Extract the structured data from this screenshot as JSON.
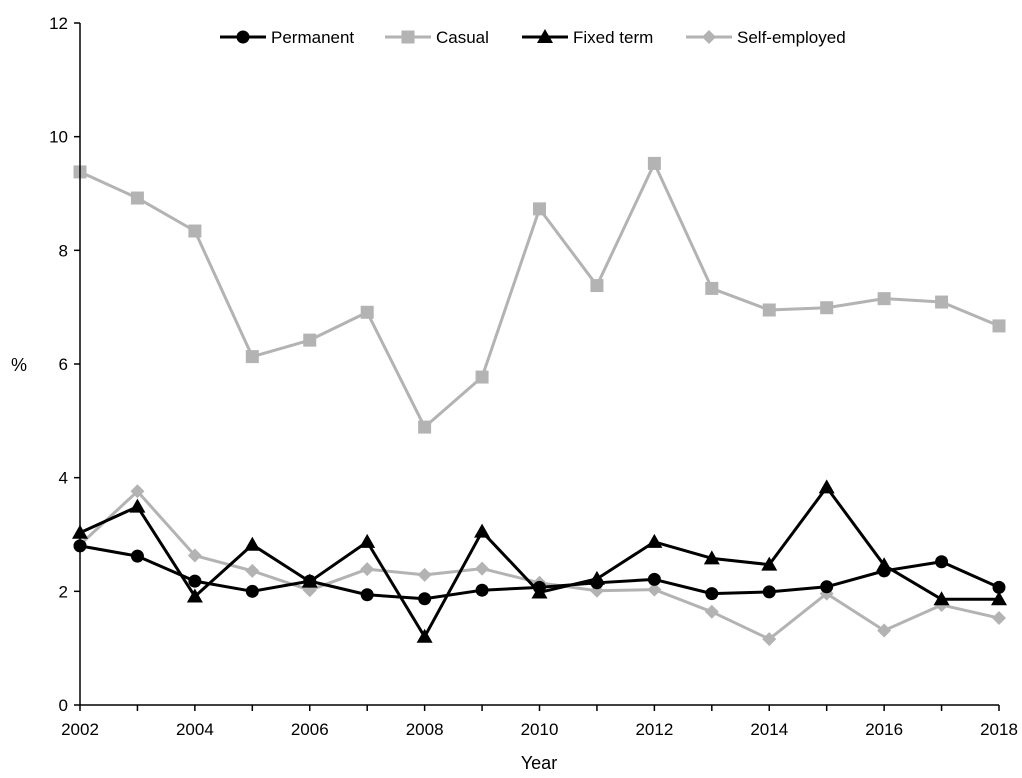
{
  "chart_data": {
    "type": "line",
    "title": "",
    "xlabel": "Year",
    "ylabel": "%",
    "x": [
      2002,
      2003,
      2004,
      2005,
      2006,
      2007,
      2008,
      2009,
      2010,
      2011,
      2012,
      2013,
      2014,
      2015,
      2016,
      2017,
      2018
    ],
    "xlim": [
      2002,
      2018
    ],
    "ylim": [
      0,
      12
    ],
    "x_ticks": [
      "2002",
      "2004",
      "2006",
      "2008",
      "2010",
      "2012",
      "2014",
      "2016",
      "2018"
    ],
    "y_ticks": [
      "0",
      "2",
      "4",
      "6",
      "8",
      "10",
      "12"
    ],
    "grid": false,
    "legend_position": "top",
    "series": [
      {
        "name": "Permanent",
        "color": "#000000",
        "marker": "circle",
        "values": [
          2.8,
          2.62,
          2.18,
          2.0,
          2.18,
          1.94,
          1.87,
          2.02,
          2.07,
          2.15,
          2.21,
          1.96,
          1.99,
          2.08,
          2.36,
          2.52,
          2.07
        ]
      },
      {
        "name": "Casual",
        "color": "#b3b3b3",
        "marker": "square",
        "values": [
          9.38,
          8.92,
          8.34,
          6.13,
          6.42,
          6.91,
          4.89,
          5.77,
          8.73,
          7.38,
          9.53,
          7.33,
          6.95,
          6.99,
          7.15,
          7.09,
          6.67
        ]
      },
      {
        "name": "Fixed term",
        "color": "#000000",
        "marker": "triangle",
        "values": [
          3.03,
          3.49,
          1.91,
          2.82,
          2.17,
          2.87,
          1.2,
          3.05,
          1.98,
          2.22,
          2.87,
          2.58,
          2.47,
          3.83,
          2.46,
          1.86,
          1.86
        ]
      },
      {
        "name": "Self-employed",
        "color": "#b3b3b3",
        "marker": "diamond",
        "values": [
          2.82,
          3.76,
          2.63,
          2.36,
          2.02,
          2.39,
          2.29,
          2.4,
          2.15,
          2.01,
          2.03,
          1.64,
          1.16,
          1.96,
          1.31,
          1.76,
          1.53
        ]
      }
    ]
  }
}
